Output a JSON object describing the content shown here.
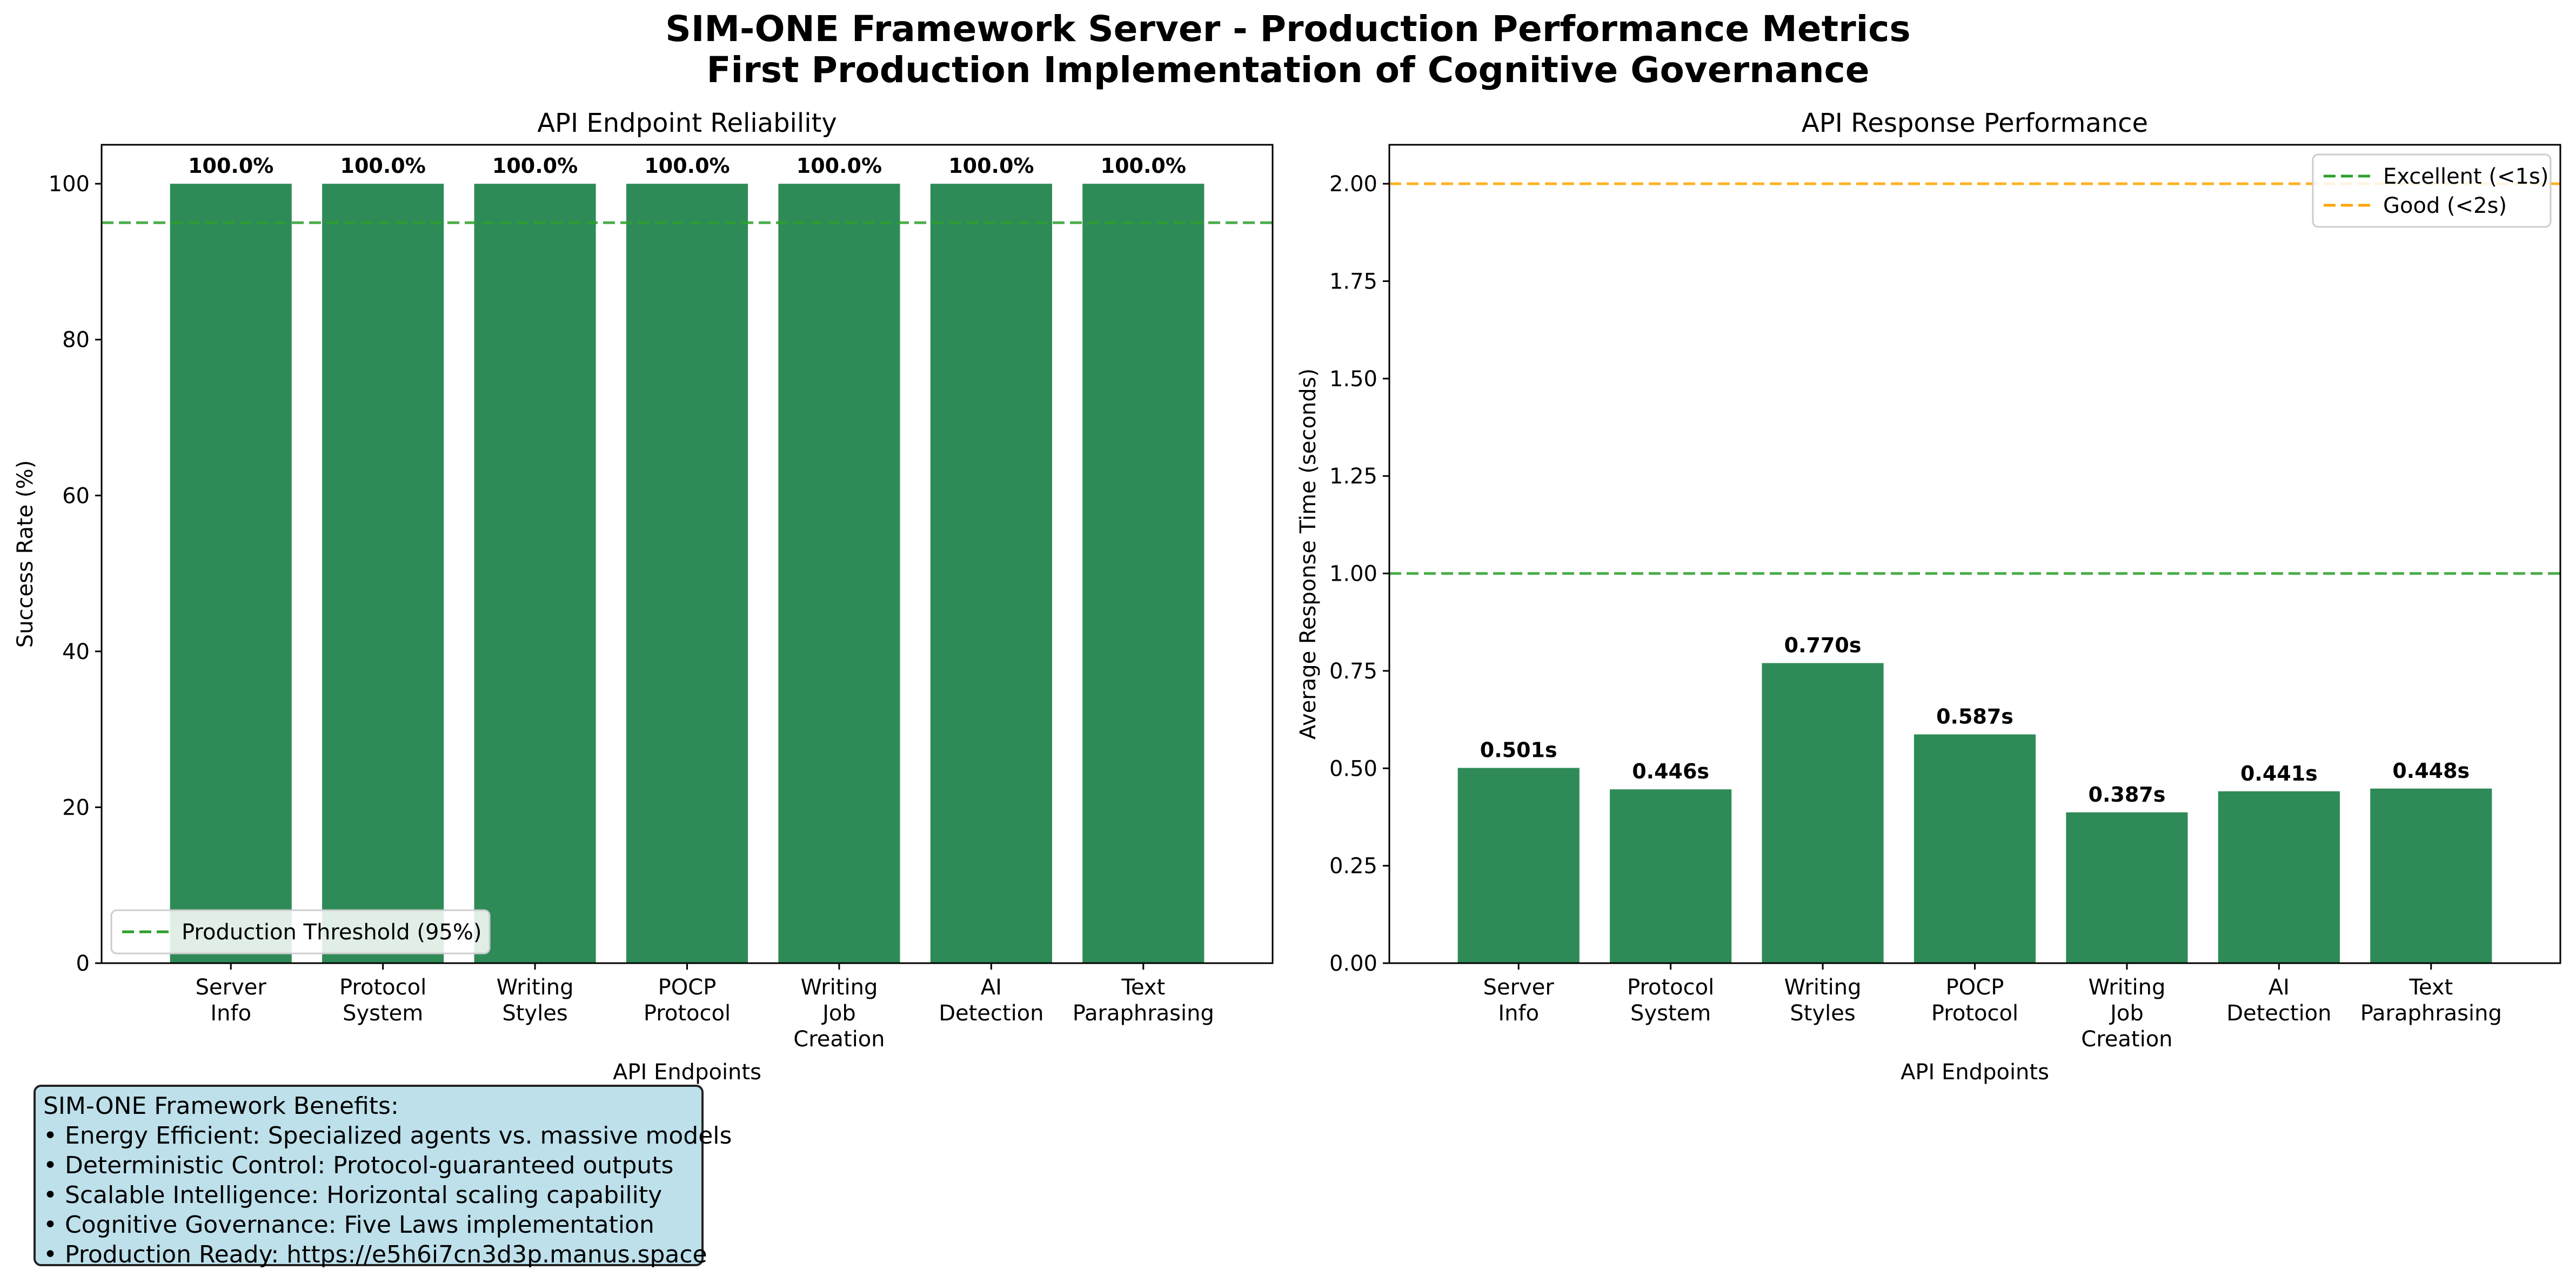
{
  "figure": {
    "title_line1": "SIM-ONE Framework Server - Production Performance Metrics",
    "title_line2": "First Production Implementation of Cognitive Governance"
  },
  "chart_data": [
    {
      "type": "bar",
      "title": "API Endpoint Reliability",
      "xlabel": "API Endpoints",
      "ylabel": "Success Rate (%)",
      "categories": [
        [
          "Server",
          "Info"
        ],
        [
          "Protocol",
          "System"
        ],
        [
          "Writing",
          "Styles"
        ],
        [
          "POCP",
          "Protocol"
        ],
        [
          "Writing",
          "Job",
          "Creation"
        ],
        [
          "AI",
          "Detection"
        ],
        [
          "Text",
          "Paraphrasing"
        ]
      ],
      "values": [
        100,
        100,
        100,
        100,
        100,
        100,
        100
      ],
      "data_labels": [
        "100.0%",
        "100.0%",
        "100.0%",
        "100.0%",
        "100.0%",
        "100.0%",
        "100.0%"
      ],
      "ylim": [
        0,
        105
      ],
      "yticks": [
        0,
        20,
        40,
        60,
        80,
        100
      ],
      "ytick_labels": [
        "0",
        "20",
        "40",
        "60",
        "80",
        "100"
      ],
      "bar_color": "#2e8b57",
      "reference_lines": [
        {
          "value": 95,
          "label": "Production Threshold (95%)",
          "color": "#2ca02c",
          "style": "dashed"
        }
      ],
      "legend_position": "lower-left"
    },
    {
      "type": "bar",
      "title": "API Response Performance",
      "xlabel": "API Endpoints",
      "ylabel": "Average Response Time (seconds)",
      "categories": [
        [
          "Server",
          "Info"
        ],
        [
          "Protocol",
          "System"
        ],
        [
          "Writing",
          "Styles"
        ],
        [
          "POCP",
          "Protocol"
        ],
        [
          "Writing",
          "Job",
          "Creation"
        ],
        [
          "AI",
          "Detection"
        ],
        [
          "Text",
          "Paraphrasing"
        ]
      ],
      "values": [
        0.501,
        0.446,
        0.77,
        0.587,
        0.387,
        0.441,
        0.448
      ],
      "data_labels": [
        "0.501s",
        "0.446s",
        "0.770s",
        "0.587s",
        "0.387s",
        "0.441s",
        "0.448s"
      ],
      "ylim": [
        0,
        2.1
      ],
      "yticks": [
        0,
        0.25,
        0.5,
        0.75,
        1.0,
        1.25,
        1.5,
        1.75,
        2.0
      ],
      "ytick_labels": [
        "0.00",
        "0.25",
        "0.50",
        "0.75",
        "1.00",
        "1.25",
        "1.50",
        "1.75",
        "2.00"
      ],
      "bar_color": "#2e8b57",
      "reference_lines": [
        {
          "value": 1.0,
          "label": "Excellent (<1s)",
          "color": "#2ca02c",
          "style": "dashed"
        },
        {
          "value": 2.0,
          "label": "Good (<2s)",
          "color": "#ffa500",
          "style": "dashed"
        }
      ],
      "legend_position": "top-right"
    }
  ],
  "benefits": {
    "heading": "SIM-ONE Framework Benefits:",
    "items": [
      "• Energy Efficient: Specialized agents vs. massive models",
      "• Deterministic Control: Protocol-guaranteed outputs",
      "• Scalable Intelligence: Horizontal scaling capability",
      "• Cognitive Governance: Five Laws implementation",
      "• Production Ready: https://e5h6i7cn3d3p.manus.space"
    ]
  }
}
